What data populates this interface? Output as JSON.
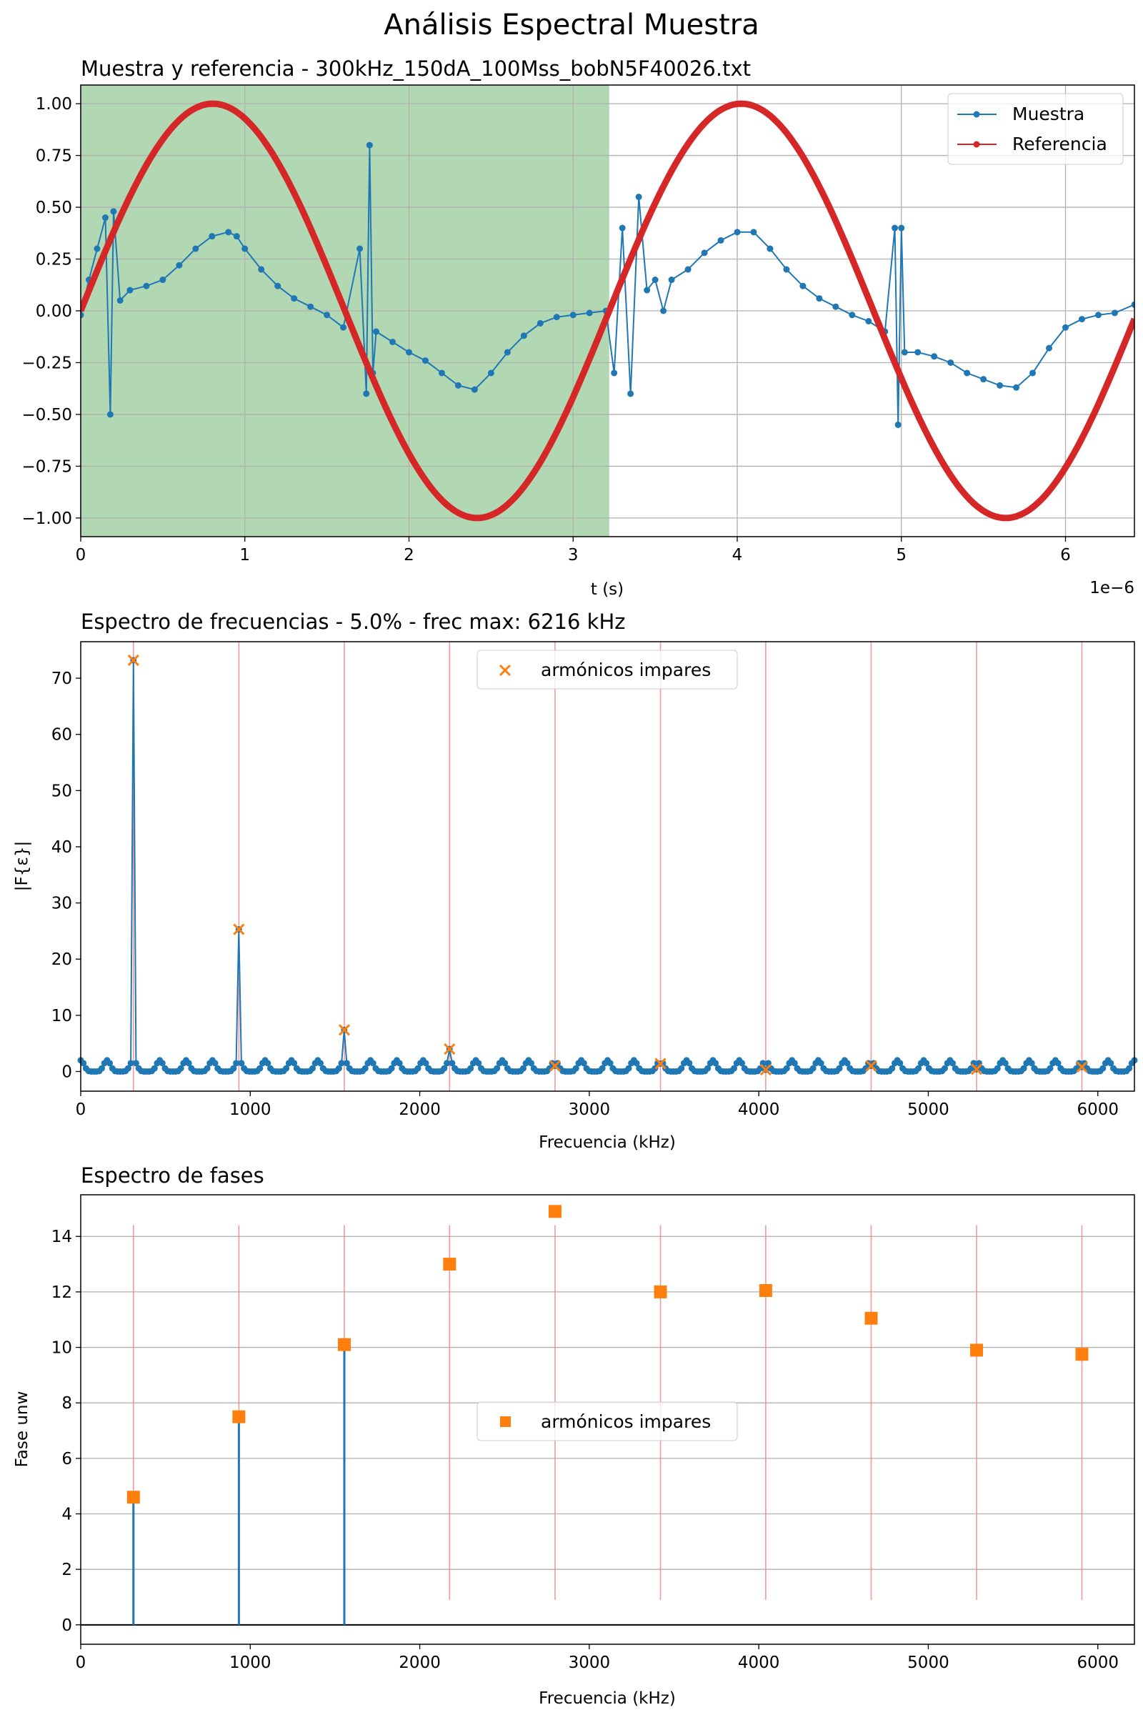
{
  "figure_title": "Análisis Espectral Muestra",
  "chart_data": [
    {
      "type": "line",
      "title": "Muestra y referencia - 300kHz_150dA_100Mss_bobN5F40026.txt",
      "xlabel": "t (s)",
      "x_offset_text": "1e−6",
      "ylabel": "",
      "xlim": [
        0,
        6.42
      ],
      "ylim": [
        -1.09,
        1.09
      ],
      "x_ticks": [
        0,
        1,
        2,
        3,
        4,
        5,
        6
      ],
      "x_tick_labels": [
        "0",
        "1",
        "2",
        "3",
        "4",
        "5",
        "6"
      ],
      "y_ticks": [
        -1.0,
        -0.75,
        -0.5,
        -0.25,
        0.0,
        0.25,
        0.5,
        0.75,
        1.0
      ],
      "y_tick_labels": [
        "−1.00",
        "−0.75",
        "−0.50",
        "−0.25",
        "0.00",
        "0.25",
        "0.50",
        "0.75",
        "1.00"
      ],
      "shaded_region_x": [
        0,
        3.22
      ],
      "grid": true,
      "legend_position": "top-right",
      "series": [
        {
          "name": "Muestra",
          "color": "#1f77b4",
          "x": [
            0,
            0.05,
            0.1,
            0.15,
            0.18,
            0.2,
            0.24,
            0.3,
            0.4,
            0.5,
            0.6,
            0.7,
            0.8,
            0.9,
            0.95,
            1.0,
            1.1,
            1.2,
            1.3,
            1.4,
            1.5,
            1.6,
            1.7,
            1.74,
            1.76,
            1.78,
            1.8,
            1.9,
            2.0,
            2.1,
            2.2,
            2.3,
            2.4,
            2.5,
            2.6,
            2.7,
            2.8,
            2.9,
            3.0,
            3.1,
            3.2,
            3.25,
            3.3,
            3.35,
            3.4,
            3.45,
            3.5,
            3.55,
            3.6,
            3.7,
            3.8,
            3.9,
            4.0,
            4.1,
            4.2,
            4.3,
            4.4,
            4.5,
            4.6,
            4.7,
            4.8,
            4.9,
            4.96,
            4.98,
            5.0,
            5.02,
            5.1,
            5.2,
            5.3,
            5.4,
            5.5,
            5.6,
            5.7,
            5.8,
            5.9,
            6.0,
            6.1,
            6.2,
            6.3,
            6.42
          ],
          "y": [
            -0.02,
            0.15,
            0.3,
            0.45,
            -0.5,
            0.48,
            0.05,
            0.1,
            0.12,
            0.15,
            0.22,
            0.3,
            0.36,
            0.38,
            0.36,
            0.3,
            0.2,
            0.12,
            0.06,
            0.02,
            -0.02,
            -0.08,
            0.3,
            -0.4,
            0.8,
            -0.3,
            -0.1,
            -0.15,
            -0.2,
            -0.24,
            -0.3,
            -0.36,
            -0.38,
            -0.3,
            -0.2,
            -0.12,
            -0.06,
            -0.03,
            -0.02,
            -0.01,
            0.0,
            -0.3,
            0.4,
            -0.4,
            0.55,
            0.1,
            0.15,
            0.0,
            0.15,
            0.2,
            0.28,
            0.34,
            0.38,
            0.38,
            0.3,
            0.2,
            0.12,
            0.06,
            0.02,
            -0.02,
            -0.05,
            -0.1,
            0.4,
            -0.55,
            0.4,
            -0.2,
            -0.2,
            -0.22,
            -0.25,
            -0.3,
            -0.33,
            -0.36,
            -0.37,
            -0.3,
            -0.18,
            -0.08,
            -0.04,
            -0.02,
            -0.01,
            0.03
          ]
        },
        {
          "name": "Referencia",
          "color": "#d62728",
          "function": "sin(2π·t/3.22)",
          "period": 3.22,
          "amplitude": 1.0
        }
      ]
    },
    {
      "type": "stem",
      "title": "Espectro de frecuencias - 5.0% - frec max: 6216 kHz",
      "xlabel": "Frecuencia (kHz)",
      "ylabel": "|F{ε}|",
      "xlim": [
        0,
        6216
      ],
      "ylim": [
        -3.5,
        76.5
      ],
      "x_ticks": [
        0,
        1000,
        2000,
        3000,
        4000,
        5000,
        6000
      ],
      "x_tick_labels": [
        "0",
        "1000",
        "2000",
        "3000",
        "4000",
        "5000",
        "6000"
      ],
      "y_ticks": [
        0,
        10,
        20,
        30,
        40,
        50,
        60,
        70
      ],
      "y_tick_labels": [
        "0",
        "10",
        "20",
        "30",
        "40",
        "50",
        "60",
        "70"
      ],
      "grid": false,
      "legend_position": "top-center",
      "noise_period_khz": 155.4,
      "noise_max": 2.0,
      "series": [
        {
          "name": "armónicos impares",
          "color": "#ff7f0e",
          "marker": "x",
          "x": [
            311,
            933,
            1555,
            2176,
            2798,
            3420,
            4041,
            4663,
            5285,
            5906
          ],
          "y": [
            73.2,
            25.3,
            7.4,
            4.0,
            1.0,
            1.4,
            0.3,
            1.0,
            0.4,
            0.8
          ]
        }
      ]
    },
    {
      "type": "scatter",
      "title": "Espectro de fases",
      "xlabel": "Frecuencia (kHz)",
      "ylabel": "Fase unw",
      "xlim": [
        0,
        6216
      ],
      "ylim": [
        -0.7,
        15.5
      ],
      "x_ticks": [
        0,
        1000,
        2000,
        3000,
        4000,
        5000,
        6000
      ],
      "x_tick_labels": [
        "0",
        "1000",
        "2000",
        "3000",
        "4000",
        "5000",
        "6000"
      ],
      "y_ticks": [
        0,
        2,
        4,
        6,
        8,
        10,
        12,
        14
      ],
      "y_tick_labels": [
        "0",
        "2",
        "4",
        "6",
        "8",
        "10",
        "12",
        "14"
      ],
      "grid": "horizontal",
      "legend_position": "center",
      "vline_range": [
        0.9,
        14.4
      ],
      "stems_x": [
        311,
        933,
        1555
      ],
      "series": [
        {
          "name": "armónicos impares",
          "color": "#ff7f0e",
          "marker": "square",
          "x": [
            311,
            933,
            1555,
            2176,
            2798,
            3420,
            4041,
            4663,
            5285,
            5906
          ],
          "y": [
            4.6,
            7.5,
            10.1,
            13.0,
            14.9,
            12.0,
            12.05,
            11.05,
            9.9,
            9.75
          ]
        }
      ]
    }
  ]
}
